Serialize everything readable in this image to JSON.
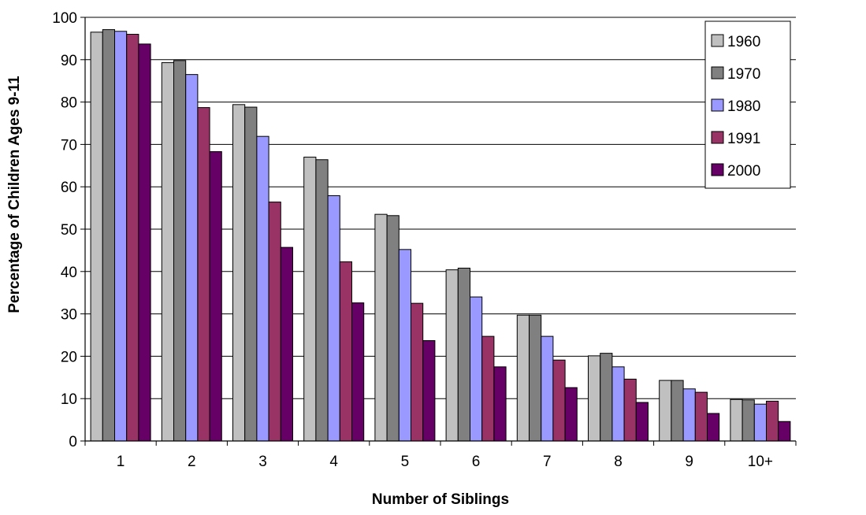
{
  "chart_data": {
    "type": "bar",
    "title": "",
    "xlabel": "Number of Siblings",
    "ylabel": "Percentage of Children Ages 9-11",
    "ylim": [
      0,
      100
    ],
    "yticks": [
      "0",
      "10",
      "20",
      "30",
      "40",
      "50",
      "60",
      "70",
      "80",
      "90",
      "100"
    ],
    "categories": [
      "1",
      "2",
      "3",
      "4",
      "5",
      "6",
      "7",
      "8",
      "9",
      "10+"
    ],
    "grid": true,
    "legend_position": "top-right",
    "series": [
      {
        "name": "1960",
        "color": "#c0c0c0",
        "values": [
          96.5,
          89.3,
          79.4,
          67.0,
          53.5,
          40.4,
          29.7,
          20.1,
          14.3,
          9.8
        ]
      },
      {
        "name": "1970",
        "color": "#808080",
        "values": [
          97.1,
          89.8,
          78.8,
          66.4,
          53.2,
          40.8,
          29.7,
          20.7,
          14.3,
          9.7
        ]
      },
      {
        "name": "1980",
        "color": "#9999ff",
        "values": [
          96.7,
          86.5,
          71.9,
          57.9,
          45.2,
          34.0,
          24.7,
          17.5,
          12.3,
          8.7
        ]
      },
      {
        "name": "1991",
        "color": "#993366",
        "values": [
          96.0,
          78.7,
          56.4,
          42.3,
          32.5,
          24.7,
          19.1,
          14.6,
          11.5,
          9.4
        ]
      },
      {
        "name": "2000",
        "color": "#660066",
        "values": [
          93.7,
          68.3,
          45.7,
          32.6,
          23.7,
          17.5,
          12.6,
          9.1,
          6.5,
          4.6
        ]
      }
    ]
  }
}
